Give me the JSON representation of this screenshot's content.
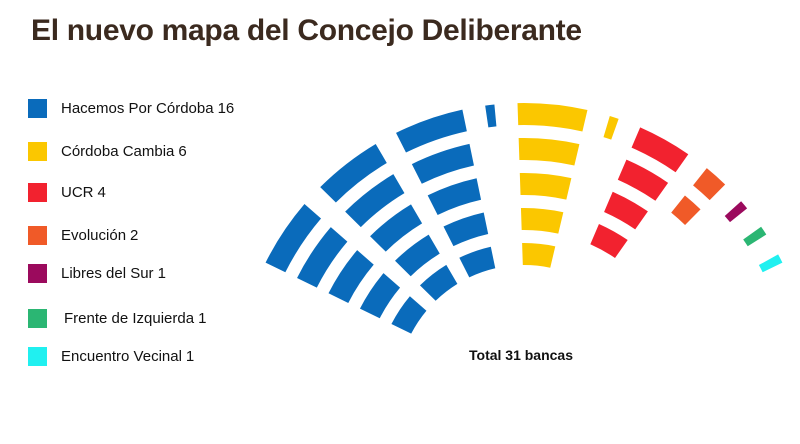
{
  "title": "El nuevo mapa del Concejo Deliberante",
  "total_label": "Total 31 bancas",
  "chart_data": {
    "type": "parliament",
    "total_seats": 31,
    "series": [
      {
        "name": "Hacemos Por Córdoba",
        "value": 16,
        "color": "#0a6bbb"
      },
      {
        "name": "Córdoba Cambia",
        "value": 6,
        "color": "#fbc700"
      },
      {
        "name": "UCR",
        "value": 4,
        "color": "#f2222f"
      },
      {
        "name": "Evolución",
        "value": 2,
        "color": "#f05a28"
      },
      {
        "name": "Libres del Sur",
        "value": 1,
        "color": "#9b0a5d"
      },
      {
        "name": "Frente de Izquierda",
        "value": 1,
        "color": "#2bb673"
      },
      {
        "name": "Encuentro Vecinal",
        "value": 1,
        "color": "#20f0f0"
      }
    ],
    "legend_placement": "left"
  }
}
